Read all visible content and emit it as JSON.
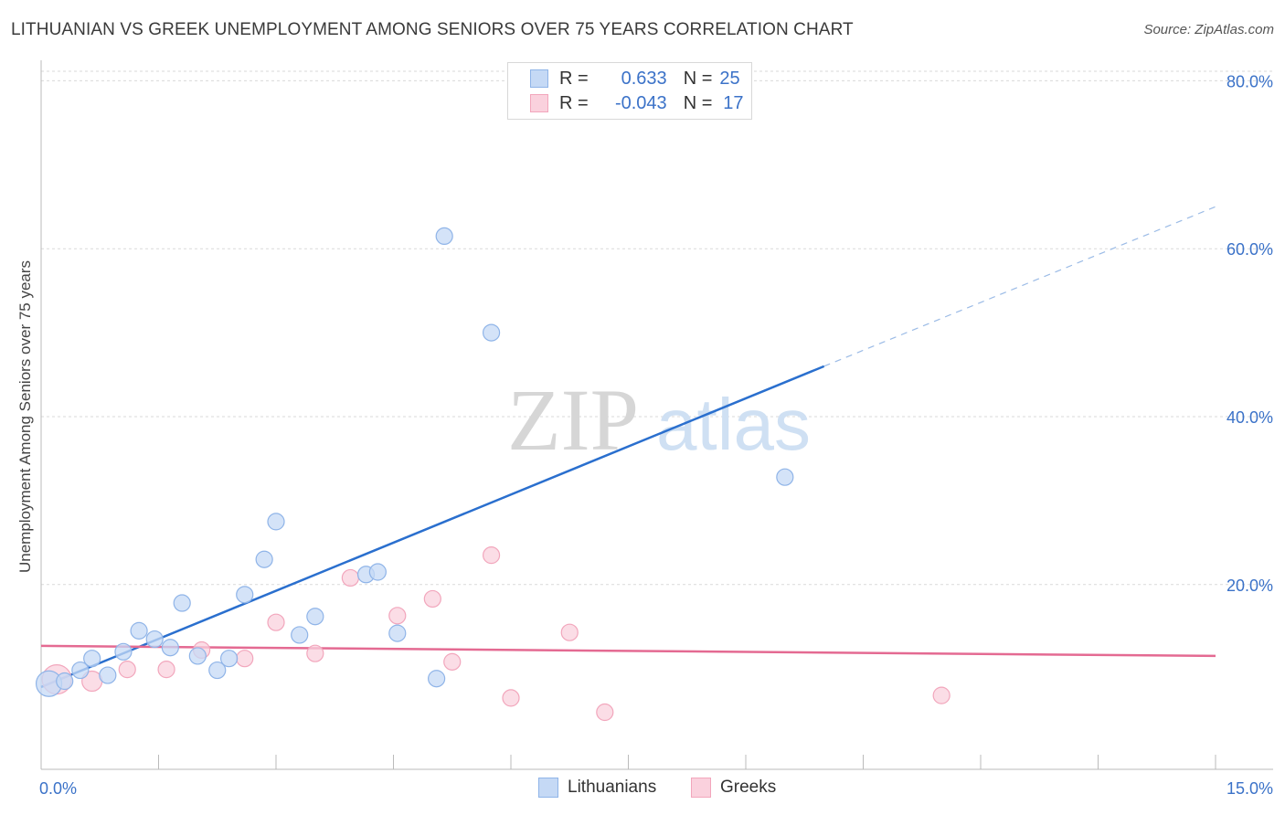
{
  "chart_data": {
    "type": "scatter",
    "title": "LITHUANIAN VS GREEK UNEMPLOYMENT AMONG SENIORS OVER 75 YEARS CORRELATION CHART",
    "source": "Source: ZipAtlas.com",
    "ylabel": "Unemployment Among Seniors over 75 years",
    "xlim": [
      0,
      15
    ],
    "ylim": [
      -2,
      82
    ],
    "x_tick_labels": [
      "0.0%",
      "15.0%"
    ],
    "y_ticks": [
      20,
      40,
      60,
      80
    ],
    "y_tick_labels": [
      "20.0%",
      "40.0%",
      "60.0%",
      "80.0%"
    ],
    "grid": true,
    "watermark": {
      "zip": "ZIP",
      "atlas": "atlas"
    },
    "legend": {
      "position": "top-center",
      "rows": [
        {
          "r_label": "R =",
          "r_value": "0.633",
          "n_label": "N =",
          "n_value": "25"
        },
        {
          "r_label": "R =",
          "r_value": "-0.043",
          "n_label": "N =",
          "n_value": "17"
        }
      ]
    },
    "series": [
      {
        "name": "Lithuanians",
        "color": "#8fb4e8",
        "fill": "#c5d9f5",
        "line_color": "#2a6fce",
        "points": [
          [
            0.1,
            8.2
          ],
          [
            0.3,
            8.5
          ],
          [
            0.5,
            9.8
          ],
          [
            0.65,
            11.2
          ],
          [
            0.85,
            9.2
          ],
          [
            1.05,
            12.0
          ],
          [
            1.25,
            14.5
          ],
          [
            1.45,
            13.5
          ],
          [
            1.65,
            12.5
          ],
          [
            1.8,
            17.8
          ],
          [
            2.0,
            11.5
          ],
          [
            2.25,
            9.8
          ],
          [
            2.4,
            11.2
          ],
          [
            2.6,
            18.8
          ],
          [
            2.85,
            23.0
          ],
          [
            3.0,
            27.5
          ],
          [
            3.3,
            14.0
          ],
          [
            3.5,
            16.2
          ],
          [
            4.15,
            21.2
          ],
          [
            4.3,
            21.5
          ],
          [
            4.55,
            14.2
          ],
          [
            5.05,
            8.8
          ],
          [
            5.15,
            61.5
          ],
          [
            5.75,
            50.0
          ],
          [
            9.5,
            32.8
          ]
        ],
        "sizes": [
          14,
          9,
          9,
          9,
          9,
          9,
          9,
          9,
          9,
          9,
          9,
          9,
          9,
          9,
          9,
          9,
          9,
          9,
          9,
          9,
          9,
          9,
          9,
          9,
          9
        ],
        "trend": {
          "x0": 0.0,
          "y0": 7.8,
          "x1": 10.0,
          "y1": 46.0,
          "dash_x1": 15.0,
          "dash_y1": 65.0
        }
      },
      {
        "name": "Greeks",
        "color": "#f2a6bc",
        "fill": "#fad1dd",
        "line_color": "#e46a92",
        "points": [
          [
            0.2,
            8.7
          ],
          [
            0.65,
            8.5
          ],
          [
            1.1,
            9.9
          ],
          [
            1.6,
            9.9
          ],
          [
            2.05,
            12.2
          ],
          [
            2.6,
            11.2
          ],
          [
            3.0,
            15.5
          ],
          [
            3.5,
            11.8
          ],
          [
            3.95,
            20.8
          ],
          [
            4.55,
            16.3
          ],
          [
            5.0,
            18.3
          ],
          [
            5.25,
            10.8
          ],
          [
            5.75,
            23.5
          ],
          [
            6.0,
            6.5
          ],
          [
            6.75,
            14.3
          ],
          [
            7.2,
            4.8
          ],
          [
            11.5,
            6.8
          ]
        ],
        "sizes": [
          16,
          11,
          9,
          9,
          9,
          9,
          9,
          9,
          9,
          9,
          9,
          9,
          9,
          9,
          9,
          9,
          9
        ],
        "trend": {
          "x0": 0.0,
          "y0": 12.7,
          "x1": 15.0,
          "y1": 11.5
        }
      }
    ]
  }
}
